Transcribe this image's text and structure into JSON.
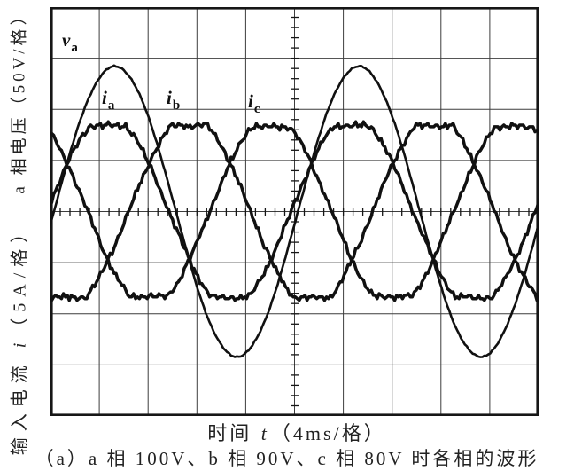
{
  "figure": {
    "ylabel_voltage": "a 相电压（50V/格）",
    "ylabel_current_prefix": "输入电流 ",
    "ylabel_current_var": "i",
    "ylabel_current_suffix": "（5A/格）",
    "xlabel_prefix": "时间 ",
    "xlabel_var": "t",
    "xlabel_suffix": "（4ms/格）",
    "caption": "（a）a 相 100V、b 相 90V、c 相 80V 时各相的波形"
  },
  "chart_data": {
    "type": "line",
    "subtype": "oscilloscope",
    "title": "",
    "xlabel": "时间 t（4ms/格）",
    "ylabels": [
      "a 相电压（50V/格）",
      "输入电流 i（5A/格）"
    ],
    "time_per_division": "4ms",
    "voltage_per_division": "50V",
    "current_per_division": "5A",
    "grid": {
      "columns": 10,
      "rows": 8,
      "minor_ticks_per_division": 5,
      "line_color": "#3d3d3d",
      "border_color": "#161616",
      "background": "#ffffff"
    },
    "trace_color": "#111111",
    "period_div": 5,
    "series": [
      {
        "id": "va",
        "label_main": "v",
        "label_sub": "a",
        "kind": "sine",
        "amplitude_div": 2.84,
        "peak_at_div": 1.32,
        "stroke_width": 2.6,
        "noise_div": 0.008,
        "seed": 7
      },
      {
        "id": "ia",
        "label_main": "i",
        "label_sub": "a",
        "kind": "clipped_sine",
        "amplitude_div": 1.68,
        "unclipped_amplitude_div": 1.88,
        "peak_at_div": 1.18,
        "stroke_width": 3.5,
        "noise_div": 0.032,
        "seed": 11
      },
      {
        "id": "ib",
        "label_main": "i",
        "label_sub": "b",
        "kind": "clipped_sine",
        "amplitude_div": 1.68,
        "unclipped_amplitude_div": 1.88,
        "peak_at_div": 2.85,
        "stroke_width": 3.5,
        "noise_div": 0.032,
        "seed": 23
      },
      {
        "id": "ic",
        "label_main": "i",
        "label_sub": "c",
        "kind": "clipped_sine",
        "amplitude_div": 1.66,
        "unclipped_amplitude_div": 1.88,
        "peak_at_div": 4.51,
        "stroke_width": 3.5,
        "noise_div": 0.032,
        "seed": 37
      }
    ]
  }
}
